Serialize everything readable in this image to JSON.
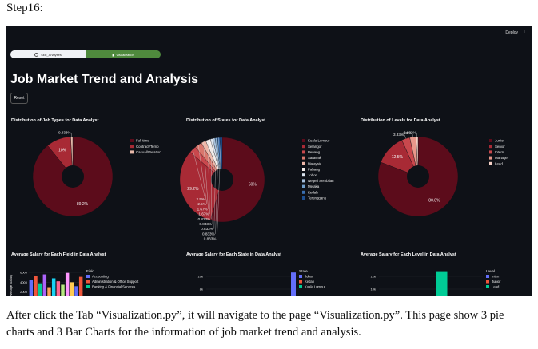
{
  "step_label": "Step16:",
  "app": {
    "deploy_label": "Deploy",
    "menu_icon": "⋮",
    "tabs": [
      {
        "label": "Skill_Analyses",
        "icon": "circle-icon"
      },
      {
        "label": "Visualization",
        "icon": "chart-icon"
      }
    ],
    "page_title": "Job Market Trend and Analysis",
    "reset_label": "Reset"
  },
  "chart_data": [
    {
      "type": "pie",
      "title": "Distribution of Job Types for Data Analyst",
      "legend": [
        "Full time",
        "Contract/Temp",
        "Casual/Vacation"
      ],
      "values": [
        89.2,
        10,
        0.833
      ],
      "labels": [
        "89.2%",
        "10%",
        "0.833%"
      ],
      "colors": [
        "#5c0c1b",
        "#a82a35",
        "#e8b9aa"
      ],
      "hole": true
    },
    {
      "type": "pie",
      "title": "Distribution of States for Data Analyst",
      "legend": [
        "Kuala Lumpur",
        "Selangor",
        "Penang",
        "Sarawak",
        "Malaysia",
        "Pahang",
        "Johor",
        "Negeri Sembilan",
        "Melaka",
        "Kedah",
        "Terengganu"
      ],
      "values": [
        50,
        29.2,
        2.5,
        2.5,
        1.67,
        1.67,
        0.833,
        0.833,
        0.833,
        0.833,
        0.833
      ],
      "labels": [
        "50%",
        "29.2%",
        "2.5%",
        "2.5%",
        "1.67%",
        "1.67%",
        "0.833%",
        "0.833%",
        "0.833%",
        "0.833%",
        "0.833%"
      ],
      "colors": [
        "#5c0c1b",
        "#a82a35",
        "#c9484d",
        "#d9776d",
        "#efb7a8",
        "#f5ece9",
        "#dbe4ef",
        "#a6c0dc",
        "#6e9cc8",
        "#3a6fb0",
        "#1d4f91"
      ],
      "hole": true
    },
    {
      "type": "pie",
      "title": "Distribution of Levels for Data Analyst",
      "legend": [
        "Junior",
        "Senior",
        "Intern",
        "Manager",
        "Lead"
      ],
      "values": [
        80.8,
        12.5,
        3.33,
        2.5,
        0.833
      ],
      "labels": [
        "80.8%",
        "12.5%",
        "3.33%",
        "2.5%",
        "0.833%"
      ],
      "colors": [
        "#5c0c1b",
        "#a82a35",
        "#c9484d",
        "#e8978a",
        "#f5d0c5"
      ],
      "hole": true
    },
    {
      "type": "bar",
      "title": "Average Salary for Each Field in Data Analyst",
      "ylabel": "Average Salary",
      "legend_title": "Field",
      "legend": [
        "Accounting",
        "Administration & Office Support",
        "Banking & Financial Services"
      ],
      "yticks": [
        "6000",
        "4000",
        "2000"
      ],
      "ylim": [
        0,
        6500
      ],
      "values": [
        4500,
        5200,
        3800,
        5600,
        3000,
        4800,
        4200,
        3500,
        5900,
        4000,
        3200,
        5100
      ],
      "colors": [
        "#636efa",
        "#ef553b",
        "#00cc96",
        "#ab63fa",
        "#ffa15a",
        "#19d3f3",
        "#ff6692",
        "#b6e880",
        "#ff97ff",
        "#fecb52",
        "#636efa",
        "#ef553b"
      ]
    },
    {
      "type": "bar",
      "title": "Average Salary for Each State in Data Analyst",
      "legend_title": "State",
      "legend": [
        "Johor",
        "Kedah",
        "Kuala Lumpur"
      ],
      "yticks": [
        "10k",
        "8k"
      ],
      "ylim": [
        6000,
        11000
      ],
      "values": [
        10600
      ],
      "colors": [
        "#636efa"
      ]
    },
    {
      "type": "bar",
      "title": "Average Salary for Each Level in Data Analyst",
      "legend_title": "Level",
      "legend": [
        "Intern",
        "Junior",
        "Lead"
      ],
      "yticks": [
        "12k",
        "10k"
      ],
      "ylim": [
        8000,
        13000
      ],
      "values": [
        12800
      ],
      "colors": [
        "#00cc96"
      ]
    }
  ],
  "caption": "After click the Tab “Visualization.py”, it will navigate to the page “Visualization.py”. This page show 3 pie charts and 3 Bar Charts for the information of job market trend and analysis."
}
